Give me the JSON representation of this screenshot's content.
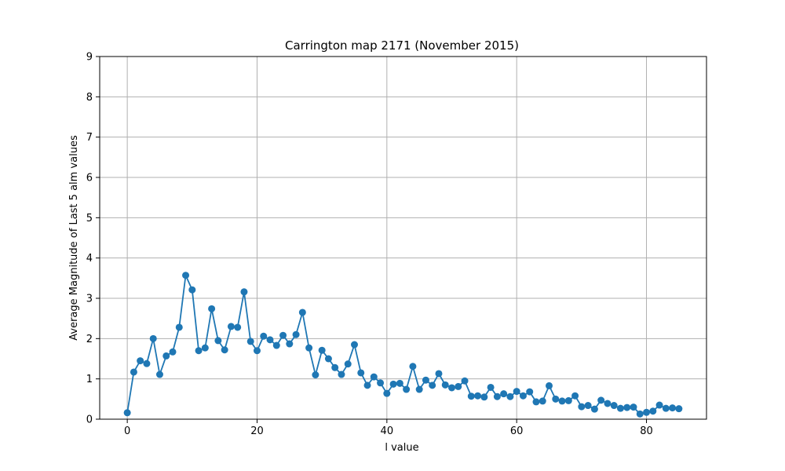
{
  "chart_data": {
    "type": "line",
    "title": "Carrington map 2171 (November 2015)",
    "xlabel": "l value",
    "ylabel": "Average Magnitude of Last 5 alm values",
    "xlim": [
      -4.25,
      89.25
    ],
    "ylim": [
      0,
      9
    ],
    "xticks": [
      0,
      20,
      40,
      60,
      80
    ],
    "yticks": [
      0,
      1,
      2,
      3,
      4,
      5,
      6,
      7,
      8,
      9
    ],
    "grid": true,
    "series": [
      {
        "color": "#1f77b4",
        "marker": "circle",
        "x": [
          0,
          1,
          2,
          3,
          4,
          5,
          6,
          7,
          8,
          9,
          10,
          11,
          12,
          13,
          14,
          15,
          16,
          17,
          18,
          19,
          20,
          21,
          22,
          23,
          24,
          25,
          26,
          27,
          28,
          29,
          30,
          31,
          32,
          33,
          34,
          35,
          36,
          37,
          38,
          39,
          40,
          41,
          42,
          43,
          44,
          45,
          46,
          47,
          48,
          49,
          50,
          51,
          52,
          53,
          54,
          55,
          56,
          57,
          58,
          59,
          60,
          61,
          62,
          63,
          64,
          65,
          66,
          67,
          68,
          69,
          70,
          71,
          72,
          73,
          74,
          75,
          76,
          77,
          78,
          79,
          80,
          81,
          82,
          83,
          84,
          85
        ],
        "y": [
          0.16,
          1.17,
          1.45,
          1.38,
          2.0,
          1.11,
          1.57,
          1.67,
          2.28,
          3.57,
          3.21,
          1.7,
          1.77,
          2.74,
          1.95,
          1.72,
          2.3,
          2.28,
          3.16,
          1.93,
          1.7,
          2.06,
          1.97,
          1.83,
          2.08,
          1.87,
          2.1,
          2.65,
          1.77,
          1.1,
          1.71,
          1.5,
          1.28,
          1.11,
          1.37,
          1.85,
          1.15,
          0.84,
          1.05,
          0.9,
          0.64,
          0.87,
          0.89,
          0.74,
          1.31,
          0.74,
          0.97,
          0.84,
          1.13,
          0.85,
          0.78,
          0.81,
          0.95,
          0.57,
          0.58,
          0.55,
          0.79,
          0.56,
          0.63,
          0.56,
          0.69,
          0.58,
          0.68,
          0.43,
          0.45,
          0.83,
          0.5,
          0.45,
          0.46,
          0.58,
          0.31,
          0.34,
          0.25,
          0.47,
          0.39,
          0.34,
          0.27,
          0.29,
          0.3,
          0.13,
          0.17,
          0.2,
          0.35,
          0.27,
          0.28,
          0.26
        ]
      }
    ]
  }
}
